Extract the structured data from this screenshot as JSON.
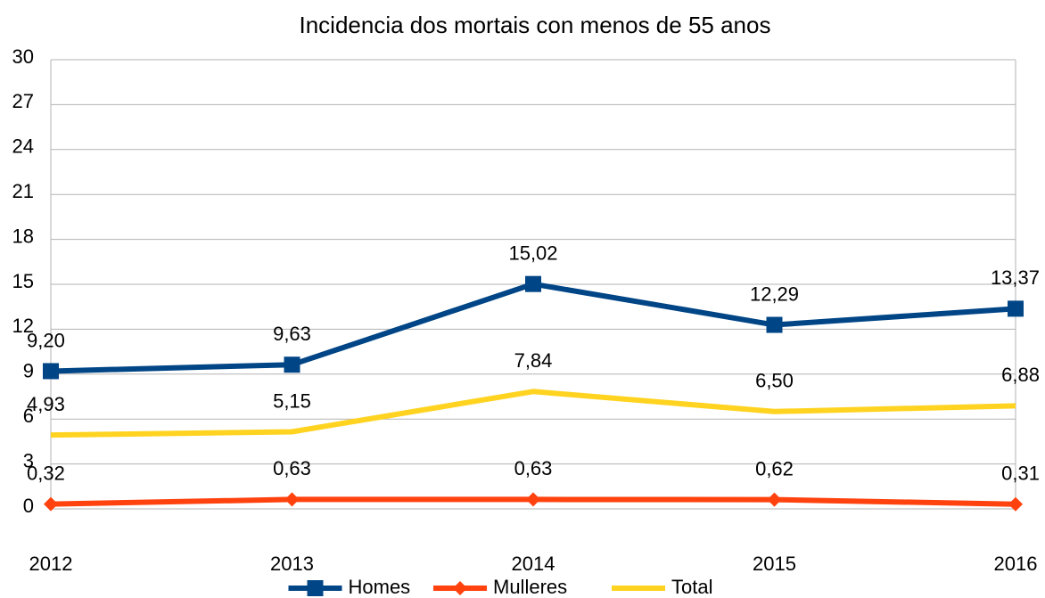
{
  "chart_data": {
    "type": "line",
    "title": "Incidencia dos mortais con menos de 55 anos",
    "categories": [
      "2012",
      "2013",
      "2014",
      "2015",
      "2016"
    ],
    "series": [
      {
        "name": "Homes",
        "color": "#004586",
        "marker": "square",
        "values": [
          9.2,
          9.63,
          15.02,
          12.29,
          13.37
        ],
        "value_labels": [
          "9,20",
          "9,63",
          "15,02",
          "12,29",
          "13,37"
        ]
      },
      {
        "name": "Mulleres",
        "color": "#ff420e",
        "marker": "diamond",
        "values": [
          0.32,
          0.63,
          0.63,
          0.62,
          0.31
        ],
        "value_labels": [
          "0,32",
          "0,63",
          "0,63",
          "0,62",
          "0,31"
        ]
      },
      {
        "name": "Total",
        "color": "#ffd320",
        "values": [
          4.93,
          5.15,
          7.84,
          6.5,
          6.88
        ],
        "value_labels": [
          "4,93",
          "5,15",
          "7,84",
          "6,50",
          "6,88"
        ]
      }
    ],
    "ylim": [
      0,
      30
    ],
    "yticks": [
      0,
      3,
      6,
      9,
      12,
      15,
      18,
      21,
      24,
      27,
      30
    ],
    "grid": true,
    "legend": "bottom"
  }
}
